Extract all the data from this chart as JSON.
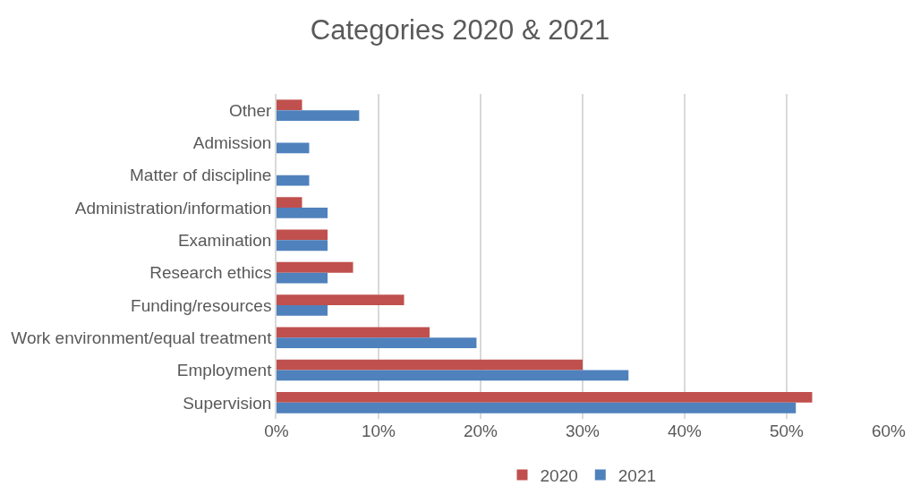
{
  "chart_data": {
    "type": "bar",
    "orientation": "horizontal",
    "title": "Categories 2020 & 2021",
    "categories": [
      "Other",
      "Admission",
      "Matter of discipline",
      "Administration/information",
      "Examination",
      "Research ethics",
      "Funding/resources",
      "Work environment/equal treatment",
      "Employment",
      "Supervision"
    ],
    "series": [
      {
        "name": "2020",
        "color": "#c0504d",
        "values": [
          2.5,
          null,
          null,
          2.5,
          5,
          7.5,
          12.5,
          15,
          30,
          52.5
        ]
      },
      {
        "name": "2021",
        "color": "#4f81bd",
        "values": [
          8.1,
          3.2,
          3.2,
          5,
          5,
          5,
          5,
          19.6,
          34.5,
          50.9
        ]
      }
    ],
    "xlim": [
      0,
      60
    ],
    "xticks": [
      {
        "value": 0,
        "label": "0%"
      },
      {
        "value": 10,
        "label": "10%"
      },
      {
        "value": 20,
        "label": "20%"
      },
      {
        "value": 30,
        "label": "30%"
      },
      {
        "value": 40,
        "label": "40%"
      },
      {
        "value": 50,
        "label": "50%"
      },
      {
        "value": 60,
        "label": "60%"
      }
    ],
    "grid": "x",
    "legend": "bottom"
  }
}
